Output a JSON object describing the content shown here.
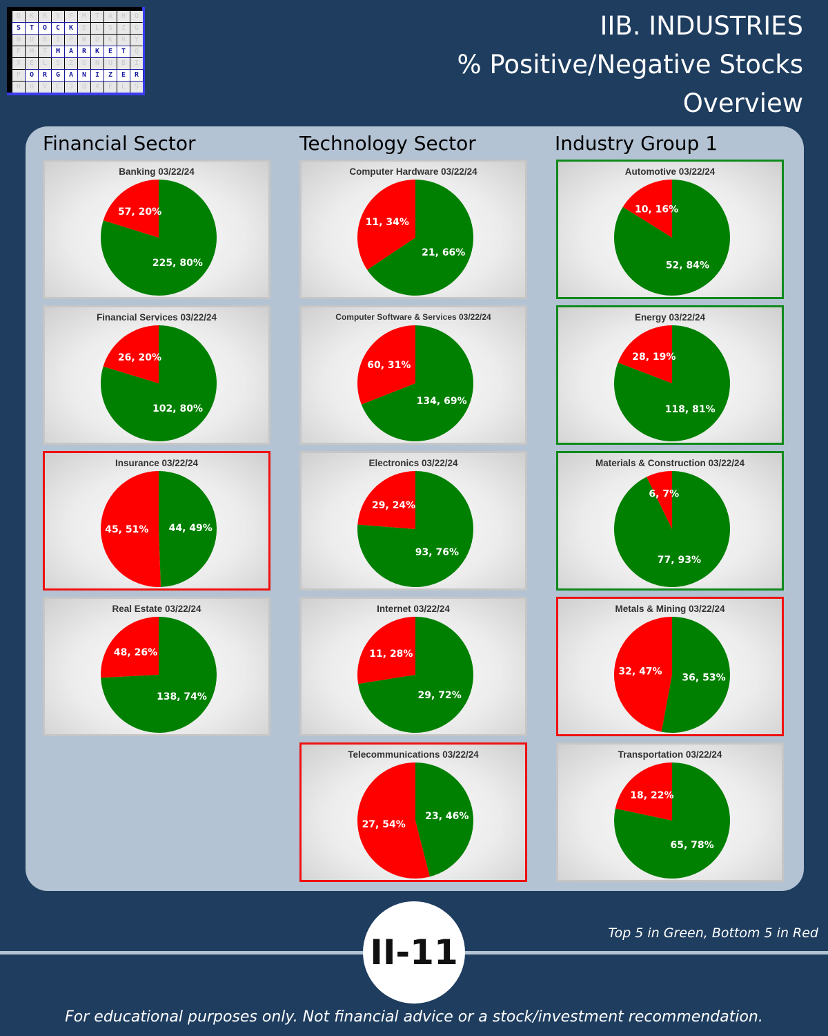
{
  "logo": {
    "text_rows": [
      "STOCK",
      "MARKET",
      "ORGANIZER"
    ]
  },
  "header": {
    "line1": "IIB. INDUSTRIES",
    "line2": "% Positive/Negative Stocks",
    "line3": "Overview"
  },
  "columns": [
    {
      "title": "Financial Sector"
    },
    {
      "title": "Technology Sector"
    },
    {
      "title": "Industry Group 1"
    }
  ],
  "colors": {
    "positive": "#008000",
    "negative": "#ff0000",
    "top_border": "#0e8a1a",
    "bottom_border": "#f01010"
  },
  "chart_data": [
    {
      "type": "pie",
      "title": "Banking 03/22/24",
      "column": 0,
      "row": 0,
      "rank": "",
      "slices": [
        {
          "label": "225, 80%",
          "value": 225,
          "color": "#008000"
        },
        {
          "label": "57, 20%",
          "value": 57,
          "color": "#ff0000"
        }
      ]
    },
    {
      "type": "pie",
      "title": "Financial Services 03/22/24",
      "column": 0,
      "row": 1,
      "rank": "",
      "slices": [
        {
          "label": "102, 80%",
          "value": 102,
          "color": "#008000"
        },
        {
          "label": "26, 20%",
          "value": 26,
          "color": "#ff0000"
        }
      ]
    },
    {
      "type": "pie",
      "title": "Insurance 03/22/24",
      "column": 0,
      "row": 2,
      "rank": "bottom",
      "slices": [
        {
          "label": "44, 49%",
          "value": 44,
          "color": "#008000"
        },
        {
          "label": "45, 51%",
          "value": 45,
          "color": "#ff0000"
        }
      ]
    },
    {
      "type": "pie",
      "title": "Real Estate 03/22/24",
      "column": 0,
      "row": 3,
      "rank": "",
      "slices": [
        {
          "label": "138, 74%",
          "value": 138,
          "color": "#008000"
        },
        {
          "label": "48, 26%",
          "value": 48,
          "color": "#ff0000"
        }
      ]
    },
    {
      "type": "pie",
      "title": "Computer Hardware 03/22/24",
      "column": 1,
      "row": 0,
      "rank": "",
      "slices": [
        {
          "label": "21, 66%",
          "value": 21,
          "color": "#008000"
        },
        {
          "label": "11, 34%",
          "value": 11,
          "color": "#ff0000"
        }
      ]
    },
    {
      "type": "pie",
      "title": "Computer Software & Services 03/22/24",
      "column": 1,
      "row": 1,
      "rank": "",
      "small_title": true,
      "slices": [
        {
          "label": "134, 69%",
          "value": 134,
          "color": "#008000"
        },
        {
          "label": "60, 31%",
          "value": 60,
          "color": "#ff0000"
        }
      ]
    },
    {
      "type": "pie",
      "title": "Electronics 03/22/24",
      "column": 1,
      "row": 2,
      "rank": "",
      "slices": [
        {
          "label": "93, 76%",
          "value": 93,
          "color": "#008000"
        },
        {
          "label": "29, 24%",
          "value": 29,
          "color": "#ff0000"
        }
      ]
    },
    {
      "type": "pie",
      "title": "Internet 03/22/24",
      "column": 1,
      "row": 3,
      "rank": "",
      "slices": [
        {
          "label": "29, 72%",
          "value": 29,
          "color": "#008000"
        },
        {
          "label": "11, 28%",
          "value": 11,
          "color": "#ff0000"
        }
      ]
    },
    {
      "type": "pie",
      "title": "Telecommunications 03/22/24",
      "column": 1,
      "row": 4,
      "rank": "bottom",
      "slices": [
        {
          "label": "23, 46%",
          "value": 23,
          "color": "#008000"
        },
        {
          "label": "27, 54%",
          "value": 27,
          "color": "#ff0000"
        }
      ]
    },
    {
      "type": "pie",
      "title": "Automotive 03/22/24",
      "column": 2,
      "row": 0,
      "rank": "top",
      "slices": [
        {
          "label": "52, 84%",
          "value": 52,
          "color": "#008000"
        },
        {
          "label": "10, 16%",
          "value": 10,
          "color": "#ff0000"
        }
      ]
    },
    {
      "type": "pie",
      "title": "Energy 03/22/24",
      "column": 2,
      "row": 1,
      "rank": "top",
      "slices": [
        {
          "label": "118, 81%",
          "value": 118,
          "color": "#008000"
        },
        {
          "label": "28, 19%",
          "value": 28,
          "color": "#ff0000"
        }
      ]
    },
    {
      "type": "pie",
      "title": "Materials & Construction 03/22/24",
      "column": 2,
      "row": 2,
      "rank": "top",
      "slices": [
        {
          "label": "77, 93%",
          "value": 77,
          "color": "#008000"
        },
        {
          "label": "6, 7%",
          "value": 6,
          "color": "#ff0000"
        }
      ]
    },
    {
      "type": "pie",
      "title": "Metals & Mining 03/22/24",
      "column": 2,
      "row": 3,
      "rank": "bottom",
      "slices": [
        {
          "label": "36, 53%",
          "value": 36,
          "color": "#008000"
        },
        {
          "label": "32, 47%",
          "value": 32,
          "color": "#ff0000"
        }
      ]
    },
    {
      "type": "pie",
      "title": "Transportation 03/22/24",
      "column": 2,
      "row": 4,
      "rank": "",
      "slices": [
        {
          "label": "65, 78%",
          "value": 65,
          "color": "#008000"
        },
        {
          "label": "18, 22%",
          "value": 18,
          "color": "#ff0000"
        }
      ]
    }
  ],
  "footer": {
    "legend_note": "Top 5 in Green, Bottom 5 in Red",
    "page_badge": "II-11",
    "disclaimer": "For educational purposes only. Not financial advice or a stock/investment recommendation."
  }
}
